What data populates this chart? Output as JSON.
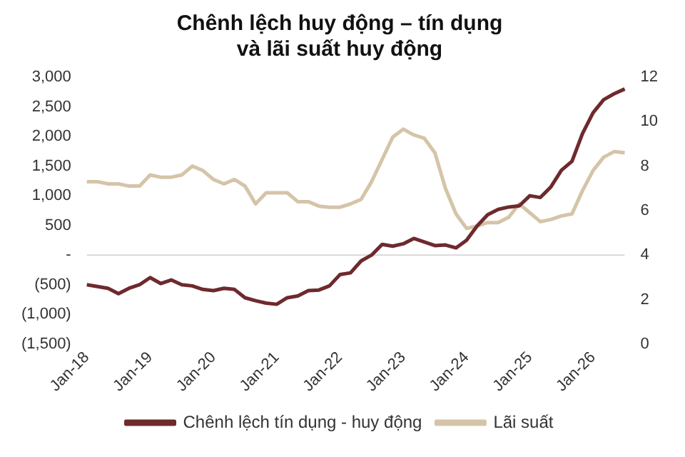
{
  "chart_data": {
    "type": "line",
    "title": "Chênh lệch huy động – tín dụng\nvà lãi suất huy động",
    "categories": [
      "Jan-18",
      null,
      null,
      null,
      null,
      null,
      "Jan-19",
      null,
      null,
      null,
      null,
      null,
      "Jan-20",
      null,
      null,
      null,
      null,
      null,
      "Jan-21",
      null,
      null,
      null,
      null,
      null,
      "Jan-22",
      null,
      null,
      null,
      null,
      null,
      "Jan-23",
      null,
      null,
      null,
      null,
      null,
      "Jan-24",
      null,
      null,
      null,
      null,
      null,
      "Jan-25",
      null,
      null,
      null,
      null,
      null,
      "Jan-26",
      null,
      null,
      null
    ],
    "series": [
      {
        "name": "Chênh lệch tín dụng - huy động",
        "color": "#6e2a2e",
        "values": [
          -500,
          -530,
          -560,
          -650,
          -560,
          -500,
          -380,
          -480,
          -420,
          -500,
          -520,
          -580,
          -600,
          -560,
          -580,
          -720,
          -770,
          -810,
          -830,
          -720,
          -690,
          -600,
          -590,
          -520,
          -330,
          -300,
          -100,
          0,
          180,
          150,
          190,
          280,
          220,
          160,
          170,
          120,
          250,
          490,
          680,
          770,
          810,
          830,
          1000,
          970,
          1150,
          1430,
          1580,
          2050,
          2400,
          2620,
          2720,
          2800
        ]
      },
      {
        "name": "Lãi suất",
        "color": "#d5c4a8",
        "axis": "y2",
        "values": [
          7.3,
          7.3,
          7.2,
          7.2,
          7.1,
          7.1,
          7.6,
          7.5,
          7.5,
          7.6,
          8.0,
          7.8,
          7.4,
          7.2,
          7.4,
          7.1,
          6.3,
          6.8,
          6.8,
          6.8,
          6.4,
          6.4,
          6.2,
          6.15,
          6.15,
          6.3,
          6.5,
          7.3,
          8.3,
          9.3,
          9.66,
          9.4,
          9.25,
          8.6,
          7.0,
          5.85,
          5.2,
          5.3,
          5.46,
          5.46,
          5.7,
          6.3,
          5.9,
          5.5,
          5.6,
          5.76,
          5.85,
          6.9,
          7.8,
          8.4,
          8.65,
          8.6
        ]
      }
    ],
    "ylim": [
      -1500,
      3000
    ],
    "yticks": [
      {
        "value": -1500,
        "label": "(1,500)"
      },
      {
        "value": -1000,
        "label": "(1,000)"
      },
      {
        "value": -500,
        "label": "(500)"
      },
      {
        "value": 0,
        "label": "-"
      },
      {
        "value": 500,
        "label": "500"
      },
      {
        "value": 1000,
        "label": "1,000"
      },
      {
        "value": 1500,
        "label": "1,500"
      },
      {
        "value": 2000,
        "label": "2,000"
      },
      {
        "value": 2500,
        "label": "2,500"
      },
      {
        "value": 3000,
        "label": "3,000"
      }
    ],
    "y2lim": [
      0,
      12
    ],
    "y2ticks": [
      0,
      2,
      4,
      6,
      8,
      10,
      12
    ],
    "ref_lines": [
      {
        "axis": "y",
        "value": 0,
        "color": "#d9d9d9"
      }
    ],
    "grid": false,
    "legend": "bottom",
    "marker": "none",
    "line_style": "solid"
  }
}
